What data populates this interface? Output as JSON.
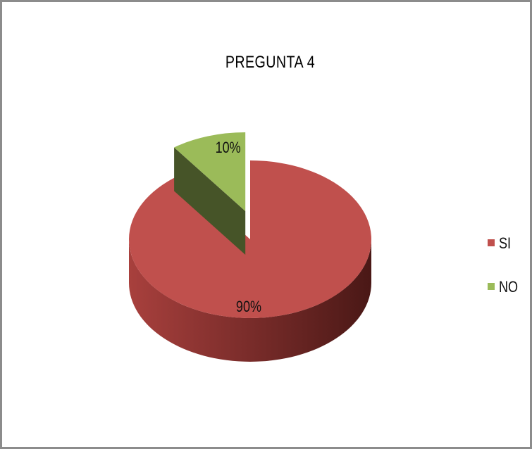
{
  "chart_data": {
    "type": "pie",
    "title": "PREGUNTA  4",
    "slices": [
      {
        "name": "SI",
        "value": 90,
        "label": "90%",
        "color": "#c0504d"
      },
      {
        "name": "NO",
        "value": 10,
        "label": "10%",
        "color": "#9bbb59"
      }
    ],
    "legend_position": "right",
    "three_d": true,
    "exploded": "NO"
  }
}
